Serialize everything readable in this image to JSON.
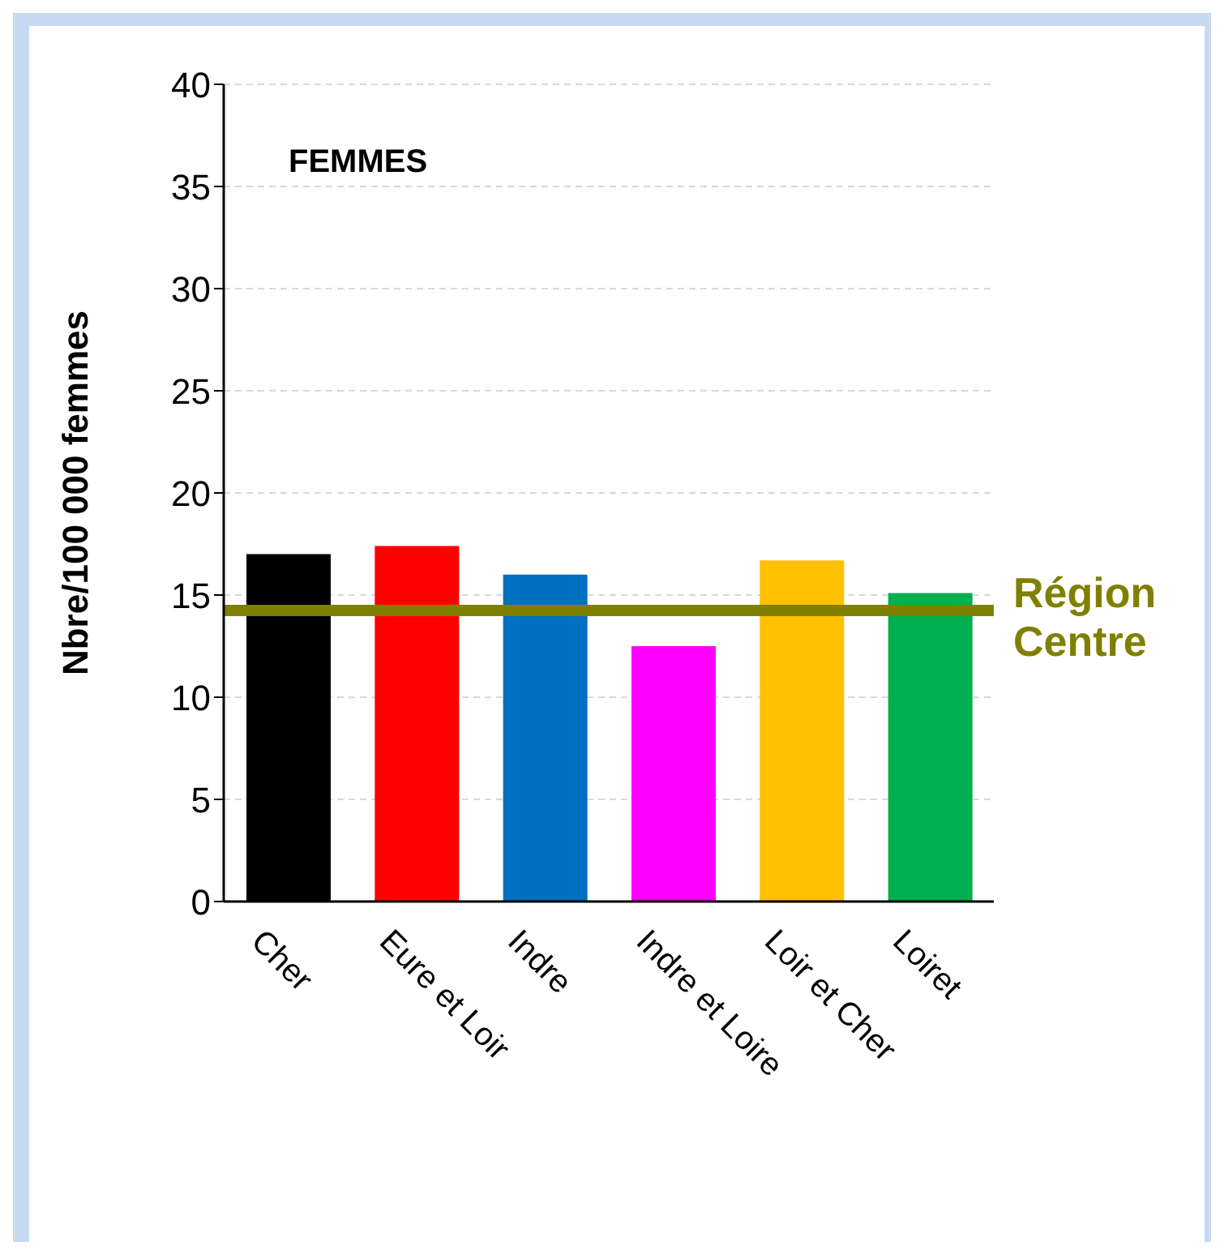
{
  "chart_data": {
    "type": "bar",
    "title": "FEMMES",
    "ylabel": "Nbre/100 000 femmes",
    "categories": [
      "Cher",
      "Eure et Loir",
      "Indre",
      "Indre et Loire",
      "Loir et Cher",
      "Loiret"
    ],
    "values": [
      17.0,
      17.4,
      16.0,
      12.5,
      16.7,
      15.1
    ],
    "colors": [
      "#000000",
      "#ff0000",
      "#0070c0",
      "#ff00ff",
      "#ffc000",
      "#00b050"
    ],
    "ylim": [
      0,
      40
    ],
    "yticks": [
      0,
      5,
      10,
      15,
      20,
      25,
      30,
      35,
      40
    ],
    "grid": "y",
    "ref_lines": [
      {
        "axis": "y",
        "value": 14.25,
        "label": "Région Centre",
        "color": "#808000"
      }
    ]
  }
}
